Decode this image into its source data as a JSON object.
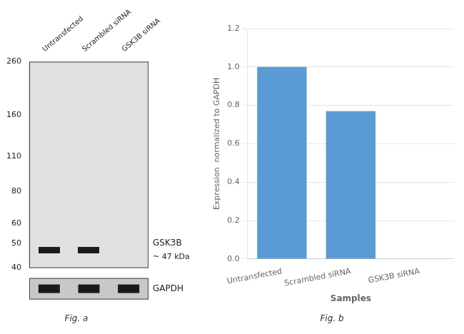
{
  "chart_data": [
    {
      "type": "blot",
      "title": "Fig. a",
      "categories": [
        "Untransfected",
        "Scrambled siRNA",
        "GSK3B siRNA"
      ],
      "log": "y",
      "ylim": [
        40,
        260
      ],
      "yticks": [
        260,
        160,
        110,
        80,
        60,
        50,
        40
      ],
      "series": [
        {
          "name": "GSK3B",
          "color": "#1a1a1a",
          "values": [
            47,
            47,
            null
          ]
        }
      ],
      "annotations": [
        "~ 47 kDa"
      ],
      "loading_control": "GAPDH",
      "grid": false
    },
    {
      "type": "bar",
      "title": "Fig. b",
      "categories": [
        "Untransfected",
        "Scrambled siRNA",
        "GSK3B siRNA"
      ],
      "values": [
        1.0,
        0.77,
        0.0
      ],
      "color": "#5B9BD5",
      "xlabel": "Samples",
      "ylabel": "Expression  normalized to GAPDH",
      "ylim": [
        0,
        1.2
      ],
      "yticks": [
        {
          "value": 0,
          "label": "0.0"
        },
        0.2,
        0.4,
        0.6,
        0.8,
        {
          "value": 1.0,
          "label": "1.0"
        },
        1.2
      ],
      "grid": true
    }
  ]
}
